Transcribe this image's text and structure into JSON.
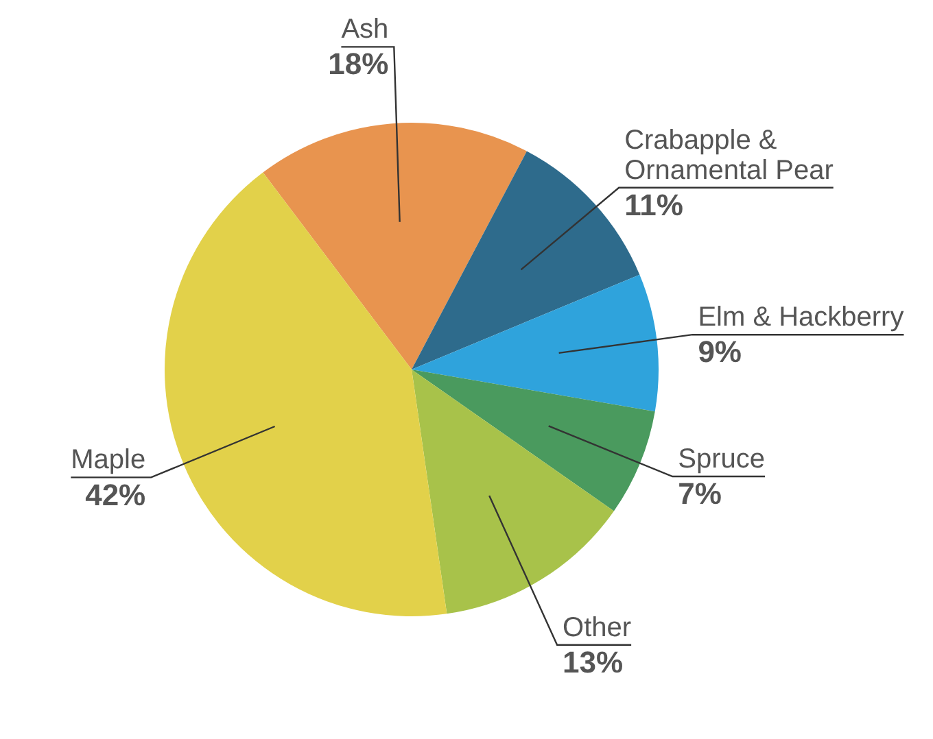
{
  "chart_data": {
    "type": "pie",
    "categories": [
      "Ash",
      "Crabapple & Ornamental Pear",
      "Elm & Hackberry",
      "Spruce",
      "Other",
      "Maple"
    ],
    "values": [
      18,
      11,
      9,
      7,
      13,
      42
    ],
    "colors": [
      "#e8944f",
      "#2e6b8c",
      "#2fa3dc",
      "#4a9a5e",
      "#a8c24a",
      "#e2d14a"
    ],
    "value_labels": [
      "18%",
      "11%",
      "9%",
      "7%",
      "13%",
      "42%"
    ]
  }
}
